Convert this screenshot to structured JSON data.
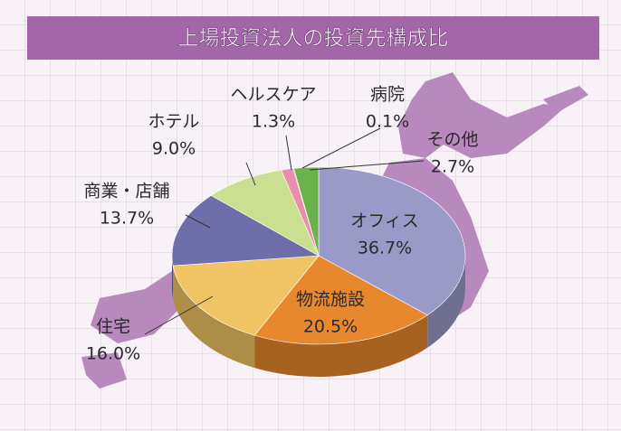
{
  "chart_data": {
    "type": "pie",
    "title": "上場投資法人の投資先構成比",
    "categories": [
      "オフィス",
      "物流施設",
      "住宅",
      "商業・店舗",
      "ホテル",
      "ヘルスケア",
      "病院",
      "その他"
    ],
    "values": [
      36.7,
      20.5,
      16.0,
      13.7,
      9.0,
      1.3,
      0.1,
      2.7
    ],
    "value_labels": [
      "36.7%",
      "20.5%",
      "16.0%",
      "13.7%",
      "9.0%",
      "1.3%",
      "0.1%",
      "2.7%"
    ],
    "colors": [
      "#9a9ac8",
      "#e8882e",
      "#f0c462",
      "#6e6eaa",
      "#cadf90",
      "#ea8cab",
      "#c03c62",
      "#6cb24c"
    ]
  }
}
